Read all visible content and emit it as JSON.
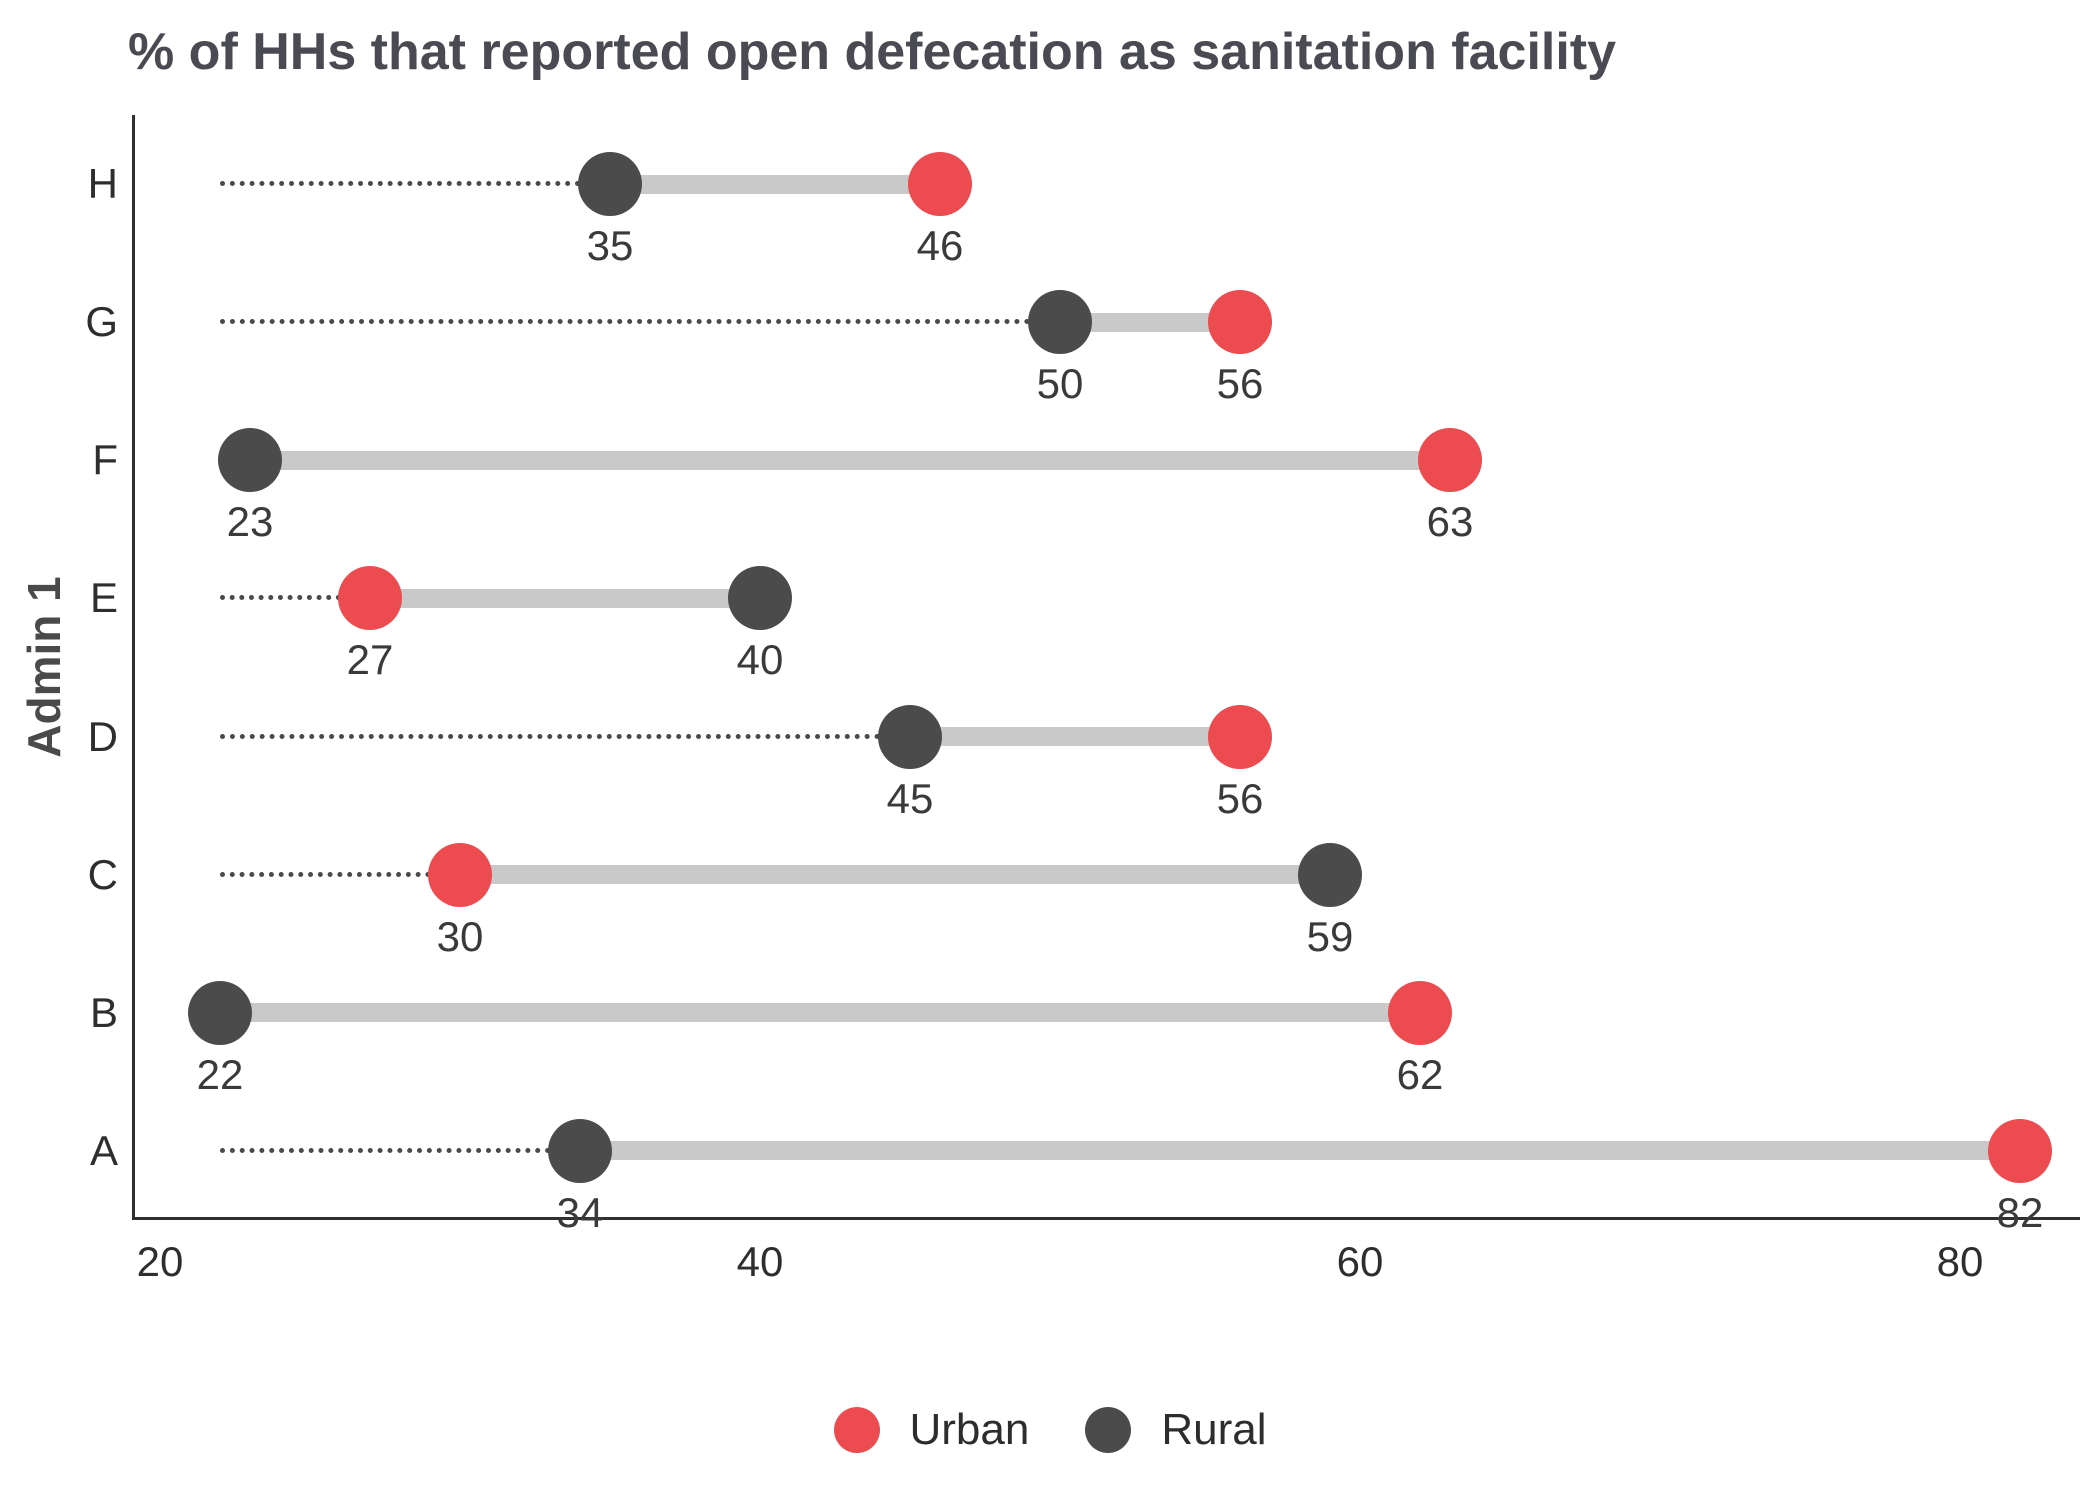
{
  "chart_data": {
    "type": "dumbbell",
    "title": "% of HHs that reported open defecation as sanitation facility",
    "ylabel": "Admin 1",
    "xlabel": "",
    "categories": [
      "H",
      "G",
      "F",
      "E",
      "D",
      "C",
      "B",
      "A"
    ],
    "series": [
      {
        "name": "Urban",
        "color": "#EC4B4F",
        "values": [
          46,
          56,
          63,
          27,
          56,
          30,
          62,
          82
        ]
      },
      {
        "name": "Rural",
        "color": "#4B4B4B",
        "values": [
          35,
          50,
          23,
          40,
          45,
          59,
          22,
          34
        ]
      }
    ],
    "x_ticks": [
      20,
      40,
      60,
      80
    ],
    "xlim": [
      19.5,
      84
    ],
    "grid": false,
    "legend_position": "bottom",
    "connector_color": "#c9c9c9",
    "leader_line_color": "#4a4a4a",
    "leader_line_start": 22
  }
}
